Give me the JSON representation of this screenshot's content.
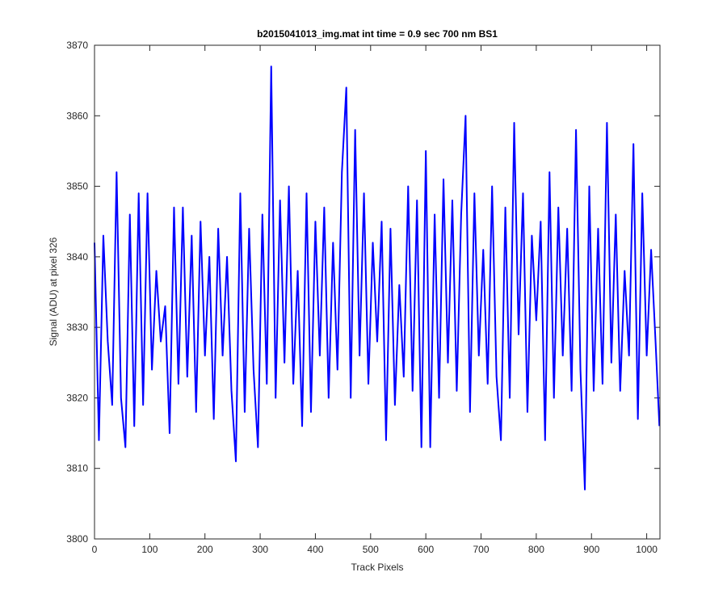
{
  "chart_data": {
    "type": "line",
    "title": "b2015041013_img.mat int time = 0.9 sec  700 nm BS1",
    "x_label": "Track Pixels",
    "y_label": "Signal (ADU) at pixel 326",
    "x": [
      0,
      8,
      16,
      24,
      32,
      40,
      48,
      56,
      64,
      72,
      80,
      88,
      96,
      104,
      112,
      120,
      128,
      136,
      144,
      152,
      160,
      168,
      176,
      184,
      192,
      200,
      208,
      216,
      224,
      232,
      240,
      248,
      256,
      264,
      272,
      280,
      288,
      296,
      304,
      312,
      320,
      328,
      336,
      344,
      352,
      360,
      368,
      376,
      384,
      392,
      400,
      408,
      416,
      424,
      432,
      440,
      448,
      456,
      464,
      472,
      480,
      488,
      496,
      504,
      512,
      520,
      528,
      536,
      544,
      552,
      560,
      568,
      576,
      584,
      592,
      600,
      608,
      616,
      624,
      632,
      640,
      648,
      656,
      664,
      672,
      680,
      688,
      696,
      704,
      712,
      720,
      728,
      736,
      744,
      752,
      760,
      768,
      776,
      784,
      792,
      800,
      808,
      816,
      824,
      832,
      840,
      848,
      856,
      864,
      872,
      880,
      888,
      896,
      904,
      912,
      920,
      928,
      936,
      944,
      952,
      960,
      968,
      976,
      984,
      992,
      1000,
      1008,
      1016,
      1023
    ],
    "series": [
      {
        "name": "signal",
        "color": "#0000ff",
        "values": [
          3842,
          3814,
          3843,
          3828,
          3819,
          3852,
          3820,
          3813,
          3846,
          3816,
          3849,
          3819,
          3849,
          3824,
          3838,
          3828,
          3833,
          3815,
          3847,
          3822,
          3847,
          3823,
          3843,
          3818,
          3845,
          3826,
          3840,
          3817,
          3844,
          3826,
          3840,
          3821,
          3811,
          3849,
          3818,
          3844,
          3824,
          3813,
          3846,
          3822,
          3867,
          3820,
          3848,
          3825,
          3850,
          3822,
          3838,
          3816,
          3849,
          3818,
          3845,
          3826,
          3847,
          3820,
          3842,
          3824,
          3852,
          3864,
          3820,
          3858,
          3826,
          3849,
          3822,
          3842,
          3828,
          3845,
          3814,
          3844,
          3819,
          3836,
          3823,
          3850,
          3821,
          3848,
          3813,
          3855,
          3813,
          3846,
          3820,
          3851,
          3825,
          3848,
          3821,
          3846,
          3860,
          3818,
          3849,
          3826,
          3841,
          3822,
          3850,
          3823,
          3814,
          3847,
          3820,
          3859,
          3829,
          3849,
          3818,
          3843,
          3831,
          3845,
          3814,
          3852,
          3820,
          3847,
          3826,
          3844,
          3821,
          3858,
          3824,
          3807,
          3850,
          3821,
          3844,
          3822,
          3859,
          3825,
          3846,
          3821,
          3838,
          3826,
          3856,
          3817,
          3849,
          3826,
          3841,
          3828,
          3816
        ]
      }
    ],
    "xlim": [
      0,
      1024
    ],
    "ylim": [
      3800,
      3870
    ],
    "xticks": [
      0,
      100,
      200,
      300,
      400,
      500,
      600,
      700,
      800,
      900,
      1000
    ],
    "yticks": [
      3800,
      3810,
      3820,
      3830,
      3840,
      3850,
      3860,
      3870
    ]
  }
}
